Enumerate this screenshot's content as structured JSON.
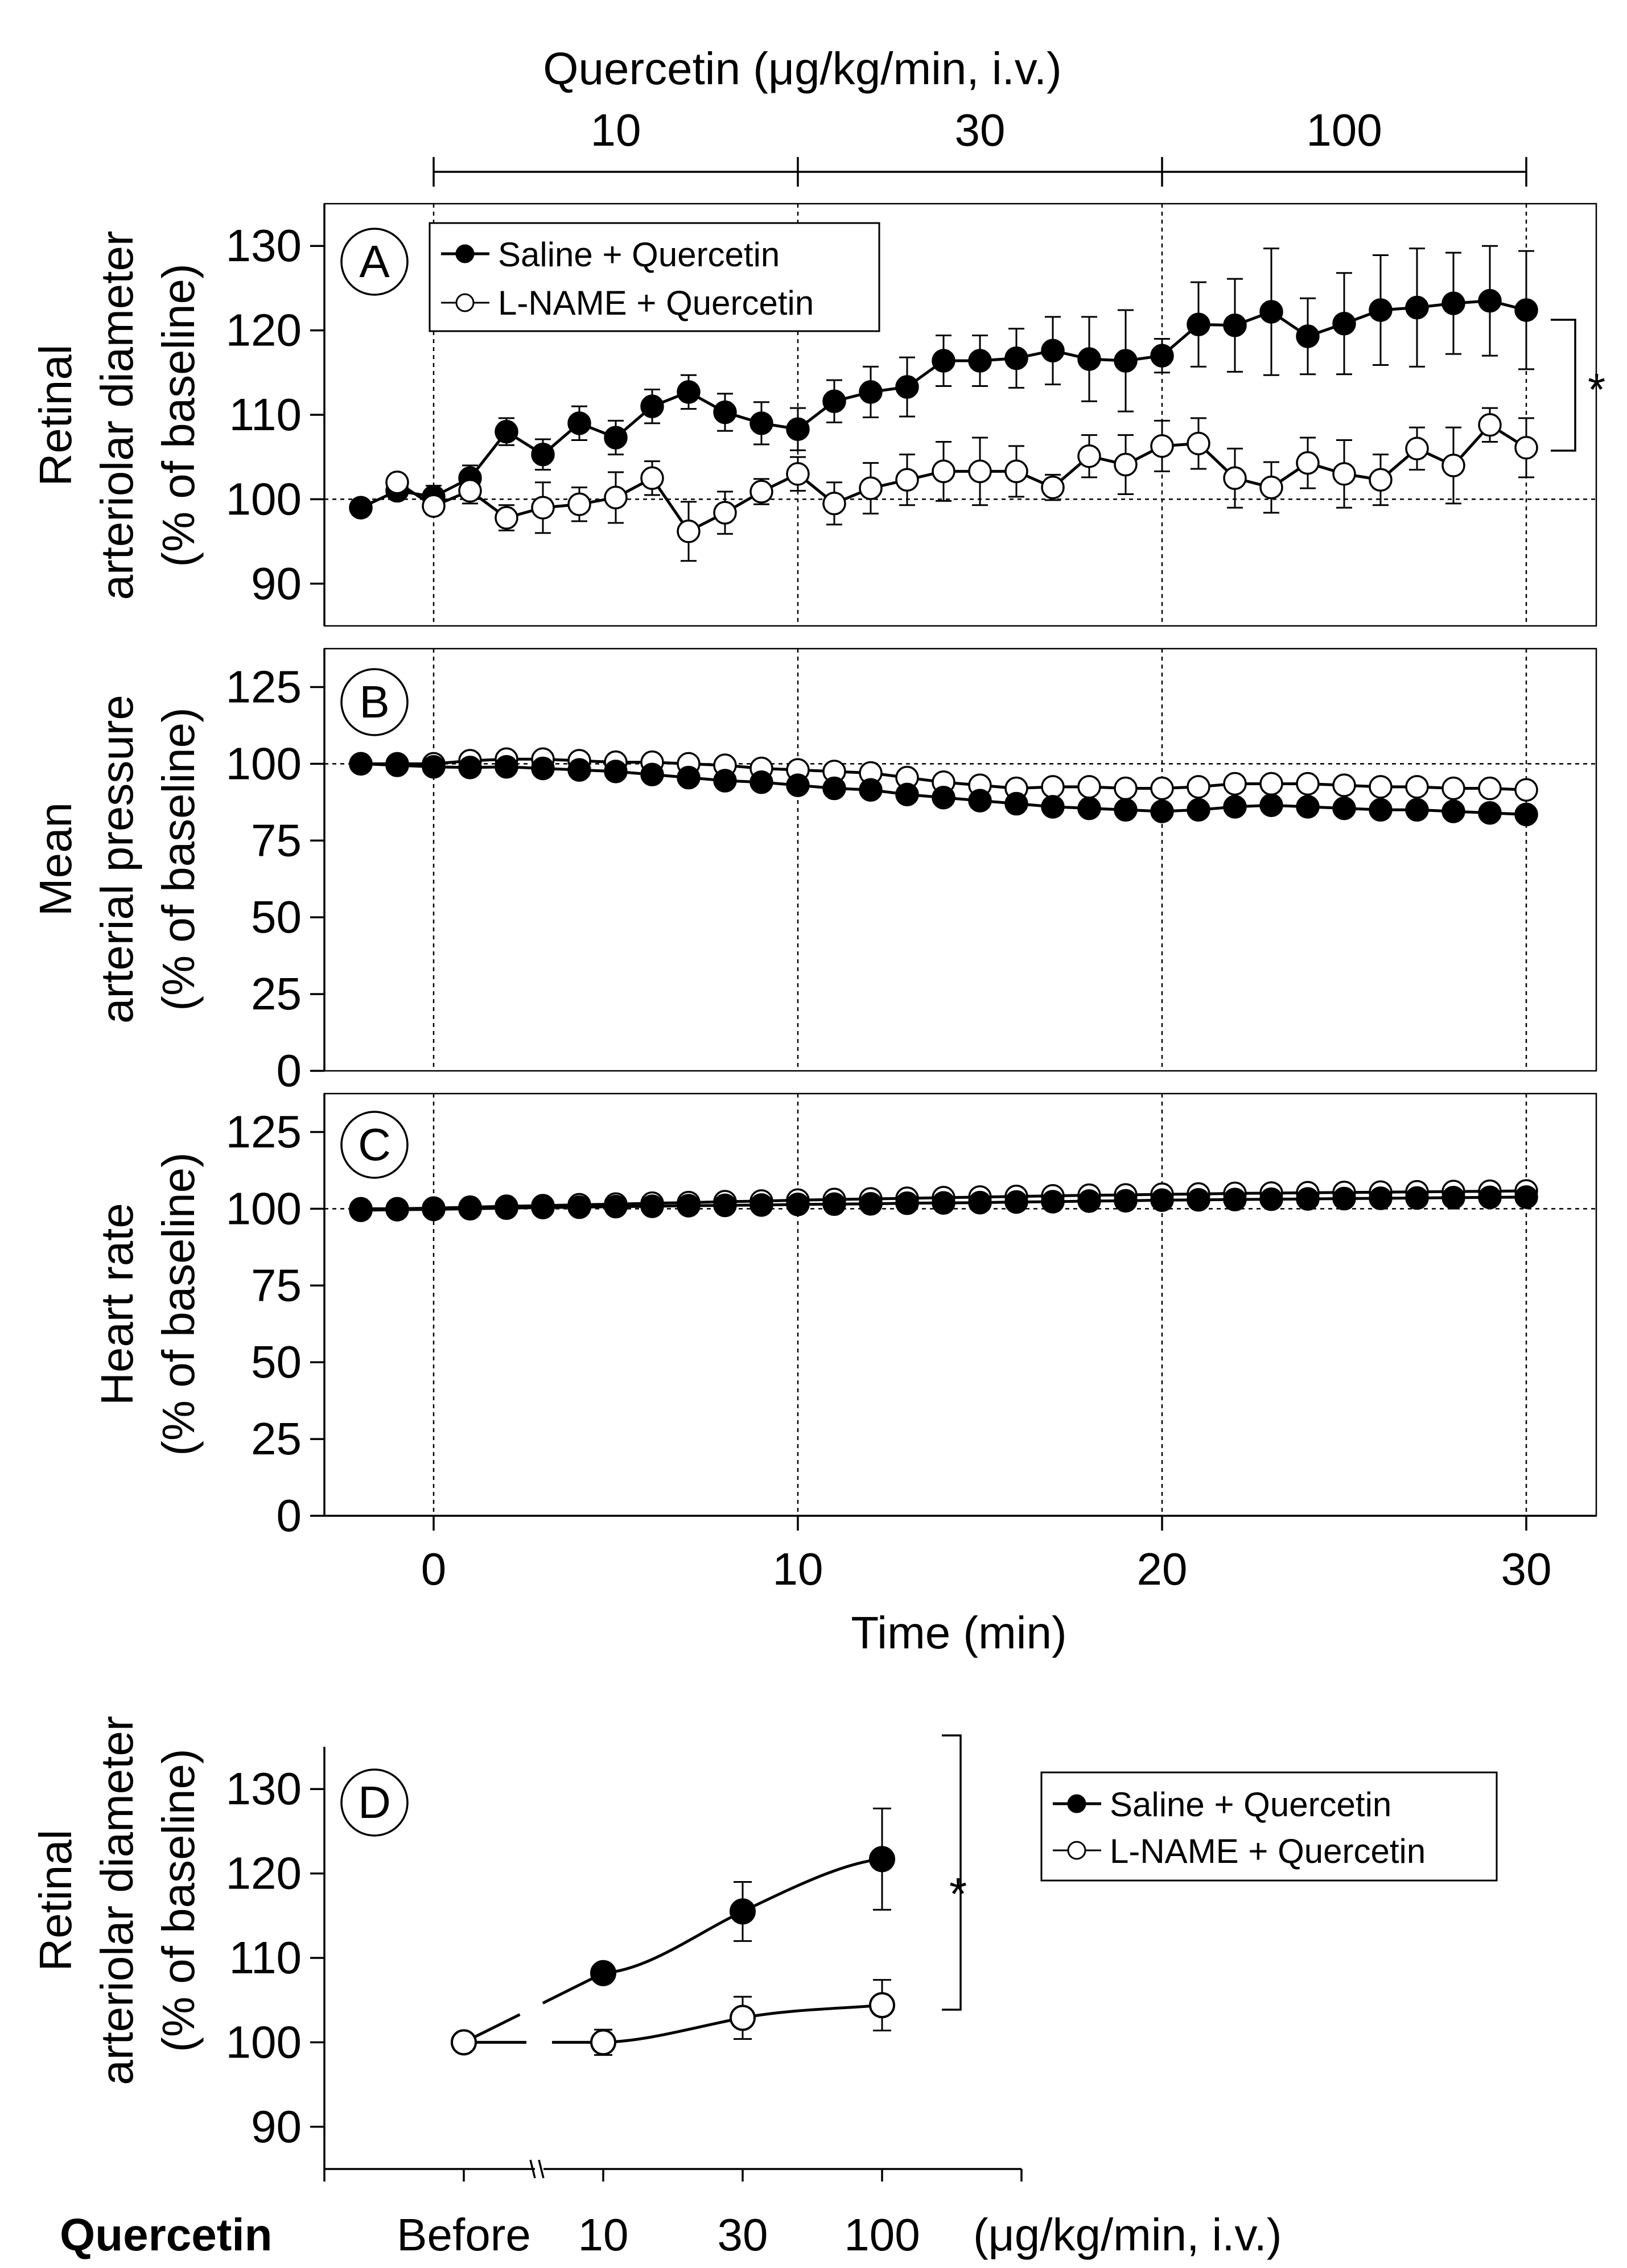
{
  "dose_header": {
    "title": "Quercetin (μg/kg/min, i.v.)",
    "doses": [
      "10",
      "30",
      "100"
    ]
  },
  "legend": {
    "saline": "Saline + Quercetin",
    "lname": "L-NAME + Quercetin"
  },
  "significance": "*",
  "x_axis": {
    "label": "Time (min)",
    "ticks": [
      "0",
      "10",
      "20",
      "30"
    ],
    "range": [
      -2.5,
      32
    ]
  },
  "chart_data": [
    {
      "id": "A",
      "letter": "A",
      "type": "line",
      "ylabel_lines": [
        "Retinal",
        "arteriolar diameter",
        "(% of baseline)"
      ],
      "ylim": [
        85,
        135
      ],
      "yticks": [
        "90",
        "100",
        "110",
        "120",
        "130"
      ],
      "ref_y": 100,
      "x": [
        -2,
        -1,
        0,
        1,
        2,
        3,
        4,
        5,
        6,
        7,
        8,
        9,
        10,
        11,
        12,
        13,
        14,
        15,
        16,
        17,
        18,
        19,
        20,
        21,
        22,
        23,
        24,
        25,
        26,
        27,
        28,
        29,
        30
      ],
      "series": [
        {
          "name": "Saline + Quercetin",
          "marker": "filled",
          "values": [
            99,
            101,
            100.3,
            102.5,
            108,
            105.3,
            109,
            107.3,
            111,
            112.7,
            110.3,
            109,
            108.3,
            111.6,
            112.7,
            113.3,
            116.4,
            116.4,
            116.7,
            117.6,
            116.6,
            116.4,
            117,
            120.7,
            120.6,
            122.2,
            119.3,
            120.8,
            122.4,
            122.7,
            123.2,
            123.5,
            122.4
          ],
          "errors": [
            0,
            0,
            1.3,
            1.5,
            1.6,
            1.8,
            2,
            2,
            2,
            2,
            2.2,
            2.5,
            2.5,
            2.5,
            3,
            3.5,
            3,
            3,
            3.5,
            4,
            5,
            6,
            2,
            5,
            5.5,
            7.5,
            4.5,
            6,
            6.5,
            7,
            6,
            6.5,
            7
          ]
        },
        {
          "name": "L-NAME + Quercetin",
          "marker": "open",
          "values": [
            null,
            102,
            99.2,
            101,
            97.8,
            99,
            99.4,
            100.2,
            102.5,
            96.2,
            98.4,
            100.9,
            103,
            99.5,
            101.3,
            102.3,
            103.3,
            103.3,
            103.3,
            101.4,
            105.1,
            104.1,
            106.3,
            106.6,
            102.5,
            101.4,
            104.3,
            103,
            102.3,
            106,
            104,
            108.8,
            106.1
          ],
          "errors": [
            0,
            0,
            1,
            1.5,
            1.5,
            3,
            2,
            3,
            2,
            3.5,
            2.5,
            1.5,
            2,
            2.5,
            3,
            3,
            3.5,
            4,
            3,
            1.5,
            2.5,
            3.5,
            3,
            3,
            3.5,
            3,
            3,
            4,
            3,
            2.5,
            4.5,
            2,
            3.5
          ]
        }
      ]
    },
    {
      "id": "B",
      "letter": "B",
      "type": "line",
      "ylabel_lines": [
        "Mean",
        "arterial pressure",
        "(% of baseline)"
      ],
      "ylim": [
        0,
        137.5
      ],
      "yticks": [
        "0",
        "25",
        "50",
        "75",
        "100",
        "125"
      ],
      "ref_y": 100,
      "x": [
        -2,
        -1,
        0,
        1,
        2,
        3,
        4,
        5,
        6,
        7,
        8,
        9,
        10,
        11,
        12,
        13,
        14,
        15,
        16,
        17,
        18,
        19,
        20,
        21,
        22,
        23,
        24,
        25,
        26,
        27,
        28,
        29,
        30
      ],
      "series": [
        {
          "name": "L-NAME + Quercetin",
          "marker": "open",
          "values": [
            100,
            100,
            100,
            101,
            101.5,
            101.5,
            101,
            100.5,
            100.5,
            100,
            99.5,
            98.5,
            98,
            97.5,
            97,
            95.5,
            94,
            93,
            92,
            92.5,
            92.5,
            92,
            92,
            92.5,
            93.5,
            93.5,
            93.5,
            93,
            92.5,
            92.5,
            92,
            92,
            91.5
          ]
        },
        {
          "name": "Saline + Quercetin",
          "marker": "filled",
          "values": [
            100,
            99.5,
            99,
            98.8,
            99,
            98.5,
            98,
            97.5,
            96.5,
            95.5,
            94.5,
            94,
            93,
            92,
            91.5,
            90,
            89,
            88,
            87,
            86,
            85.5,
            85,
            84.5,
            85,
            86,
            86.5,
            86,
            85.5,
            85,
            85,
            84.5,
            84,
            83.5
          ]
        }
      ]
    },
    {
      "id": "C",
      "letter": "C",
      "type": "line",
      "ylabel_lines": [
        "Heart rate",
        "(% of baseline)"
      ],
      "ylim": [
        0,
        137.5
      ],
      "yticks": [
        "0",
        "25",
        "50",
        "75",
        "100",
        "125"
      ],
      "ref_y": 100,
      "x": [
        -2,
        -1,
        0,
        1,
        2,
        3,
        4,
        5,
        6,
        7,
        8,
        9,
        10,
        11,
        12,
        13,
        14,
        15,
        16,
        17,
        18,
        19,
        20,
        21,
        22,
        23,
        24,
        25,
        26,
        27,
        28,
        29,
        30
      ],
      "series": [
        {
          "name": "L-NAME + Quercetin",
          "marker": "open",
          "values": [
            100,
            100,
            100.2,
            100.5,
            100.8,
            101,
            101.3,
            101.5,
            101.8,
            102,
            102.3,
            102.5,
            102.8,
            103,
            103.2,
            103.4,
            103.6,
            103.8,
            104,
            104.2,
            104.4,
            104.5,
            104.7,
            104.8,
            105,
            105.1,
            105.2,
            105.3,
            105.4,
            105.5,
            105.6,
            105.7,
            105.8
          ]
        },
        {
          "name": "Saline + Quercetin",
          "marker": "filled",
          "values": [
            99.5,
            99.7,
            99.8,
            100,
            100.2,
            100.4,
            100.5,
            100.7,
            100.8,
            101,
            101.1,
            101.2,
            101.4,
            101.5,
            101.6,
            101.8,
            101.9,
            102,
            102.2,
            102.3,
            102.5,
            102.6,
            102.8,
            102.9,
            103,
            103.1,
            103.2,
            103.3,
            103.4,
            103.5,
            103.6,
            103.7,
            103.8
          ]
        }
      ]
    },
    {
      "id": "D",
      "letter": "D",
      "type": "line",
      "ylabel_lines": [
        "Retinal",
        "arteriolar diameter",
        "(% of baseline)"
      ],
      "ylim": [
        85,
        135
      ],
      "yticks": [
        "90",
        "100",
        "110",
        "120",
        "130"
      ],
      "categories": [
        "Before",
        "10",
        "30",
        "100"
      ],
      "x_title": "Quercetin",
      "x_unit": "(μg/kg/min, i.v.)",
      "series": [
        {
          "name": "Saline + Quercetin",
          "marker": "filled",
          "values": [
            100,
            108.2,
            115.5,
            121.7
          ],
          "errors": [
            0,
            1,
            3.5,
            6
          ]
        },
        {
          "name": "L-NAME + Quercetin",
          "marker": "open",
          "values": [
            100,
            100,
            102.9,
            104.4
          ],
          "errors": [
            0,
            1.5,
            2.5,
            3
          ]
        }
      ]
    }
  ]
}
